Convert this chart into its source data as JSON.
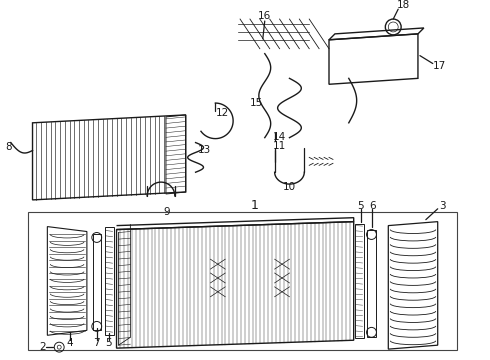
{
  "bg_color": "#ffffff",
  "line_color": "#1a1a1a",
  "fig_width": 4.9,
  "fig_height": 3.6,
  "dpi": 100
}
